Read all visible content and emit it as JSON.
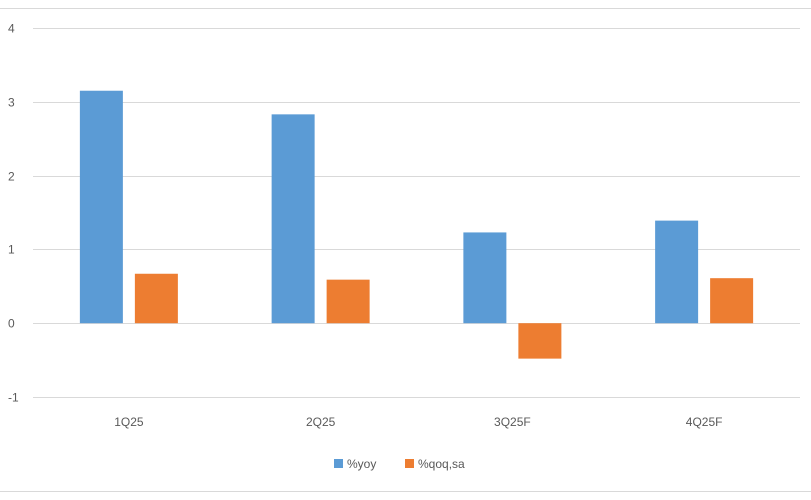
{
  "chart_data": {
    "type": "bar",
    "categories": [
      "1Q25",
      "2Q25",
      "3Q25F",
      "4Q25F"
    ],
    "series": [
      {
        "name": "%yoy",
        "color": "#5b9bd5",
        "values": [
          3.15,
          2.83,
          1.23,
          1.39
        ]
      },
      {
        "name": "%qoq,sa",
        "color": "#ed7d31",
        "values": [
          0.67,
          0.59,
          -0.48,
          0.61
        ]
      }
    ],
    "ylim": [
      -1,
      4
    ],
    "yticks": [
      -1,
      0,
      1,
      2,
      3,
      4
    ],
    "grid": true,
    "legend": "bottom-center"
  }
}
